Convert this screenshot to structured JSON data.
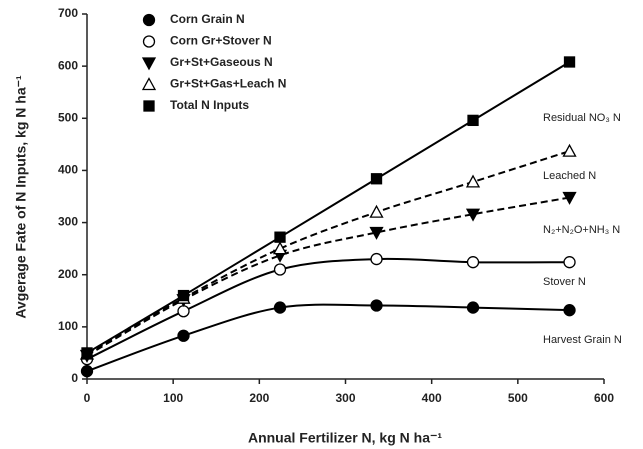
{
  "chart_data": {
    "type": "line",
    "xlabel": "Annual Fertilizer N, kg N ha⁻¹",
    "ylabel": "Avgerage Fate of N Inputs, kg N ha⁻¹",
    "x": [
      0,
      112,
      224,
      336,
      448,
      560
    ],
    "xlim": [
      0,
      600
    ],
    "xticks": [
      0,
      100,
      200,
      300,
      400,
      500,
      600
    ],
    "ylim": [
      0,
      700
    ],
    "yticks": [
      0,
      100,
      200,
      300,
      400,
      500,
      600,
      700
    ],
    "legend": "upper left",
    "series": [
      {
        "name": "Corn Grain N",
        "color": "#000000",
        "marker": "circle",
        "filled": true,
        "dash": false,
        "values": [
          15,
          83,
          137,
          141,
          137,
          132
        ]
      },
      {
        "name": "Corn Gr+Stover N",
        "color": "#000000",
        "marker": "circle",
        "filled": false,
        "dash": false,
        "values": [
          38,
          130,
          210,
          230,
          224,
          224
        ]
      },
      {
        "name": "Gr+St+Gaseous N",
        "color": "#000000",
        "marker": "triangle-down",
        "filled": true,
        "dash": true,
        "values": [
          45,
          152,
          237,
          281,
          316,
          348
        ]
      },
      {
        "name": "Gr+St+Gas+Leach N",
        "color": "#000000",
        "marker": "triangle-up",
        "filled": false,
        "dash": true,
        "values": [
          48,
          155,
          250,
          320,
          378,
          437
        ]
      },
      {
        "name": "Total N Inputs",
        "color": "#000000",
        "marker": "square",
        "filled": true,
        "dash": false,
        "values": [
          50,
          160,
          272,
          384,
          496,
          608
        ]
      }
    ],
    "annotations": [
      "Residual NO₃ N",
      "Leached N",
      "N₂+N₂O+NH₃ N",
      "Stover N",
      "Harvest Grain N"
    ]
  }
}
